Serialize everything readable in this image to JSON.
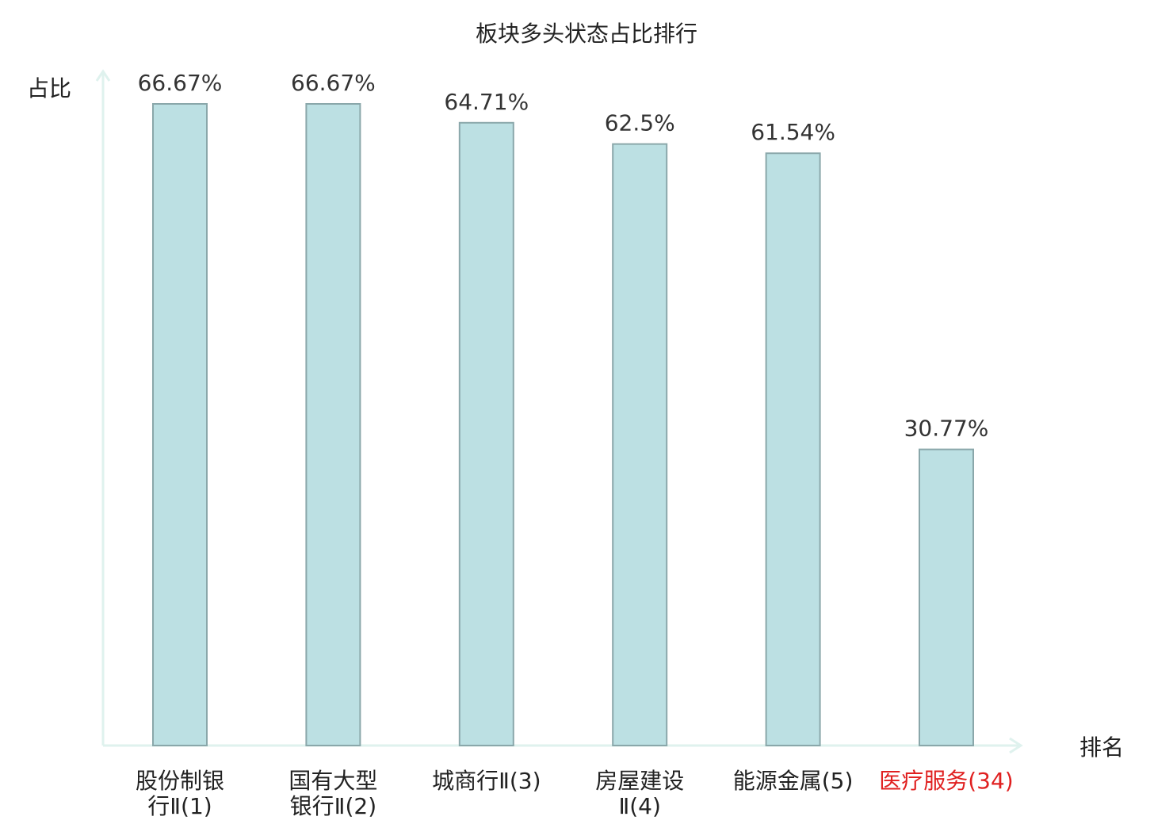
{
  "chart_data": {
    "type": "bar",
    "title": "板块多头状态占比排行",
    "ylabel": "占比",
    "xlabel": "排名",
    "categories": [
      [
        "股份制银",
        "行Ⅱ(1)"
      ],
      [
        "国有大型",
        "银行Ⅱ(2)"
      ],
      [
        "城商行Ⅱ(3)"
      ],
      [
        "房屋建设",
        "Ⅱ(4)"
      ],
      [
        "能源金属(5)"
      ],
      [
        "医疗服务(34)"
      ]
    ],
    "values": [
      66.67,
      66.67,
      64.71,
      62.5,
      61.54,
      30.77
    ],
    "value_labels": [
      "66.67%",
      "66.67%",
      "64.71%",
      "62.5%",
      "61.54%",
      "30.77%"
    ],
    "highlight_index": 5,
    "ylim": [
      0,
      70
    ],
    "grid": false,
    "colors": {
      "bar_fill": "#bce0e3",
      "bar_stroke": "#8aa7aa",
      "axis": "#dff2ee",
      "text": "#333333",
      "highlight_text": "#e02020"
    }
  }
}
